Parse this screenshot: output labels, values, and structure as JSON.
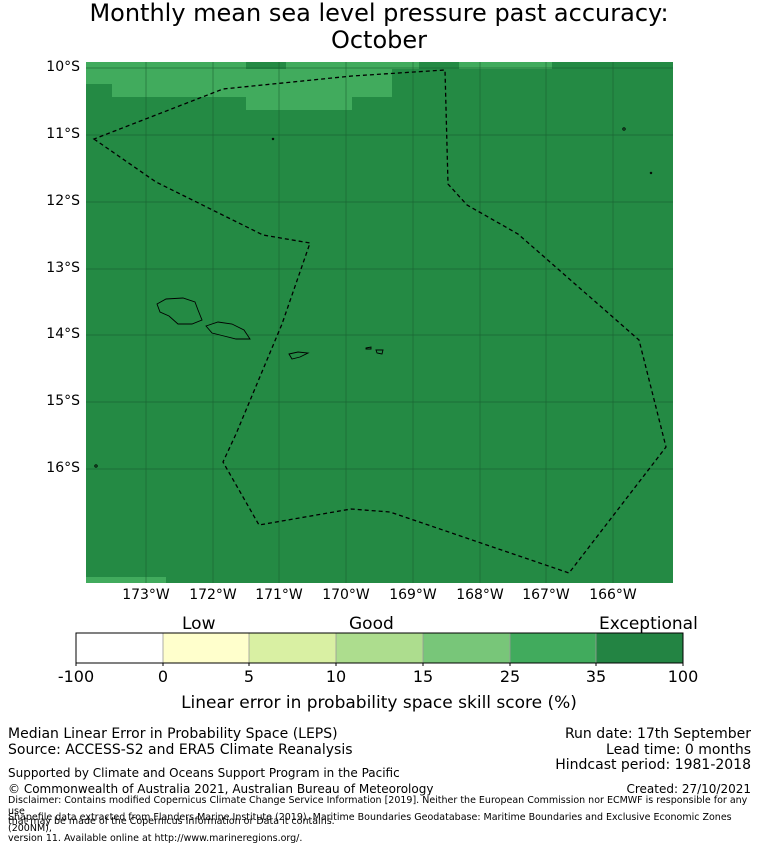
{
  "title_line1": "Monthly mean sea level pressure past accuracy:",
  "title_line2": "October",
  "map": {
    "latitude_labels": [
      "10°S",
      "11°S",
      "12°S",
      "13°S",
      "14°S",
      "15°S",
      "16°S"
    ],
    "longitude_labels": [
      "173°W",
      "172°W",
      "171°W",
      "170°W",
      "169°W",
      "168°W",
      "167°W",
      "166°W"
    ],
    "fill_color": "#248a44",
    "light_color": "#41ab5d"
  },
  "colorbar": {
    "categories": [
      "Low",
      "Good",
      "Exceptional"
    ],
    "ticks": [
      "-100",
      "0",
      "5",
      "10",
      "15",
      "25",
      "35",
      "100"
    ],
    "colors": [
      "#ffffff",
      "#ffffcc",
      "#d9f0a3",
      "#addd8e",
      "#78c679",
      "#41ab5d",
      "#238443"
    ],
    "title": "Linear error in probability space skill score (%)"
  },
  "footer": {
    "method": "Median Linear Error in Probability Space (LEPS)",
    "source": "Source: ACCESS-S2 and ERA5 Climate Reanalysis",
    "run_date": "Run date: 17th September",
    "lead_time": "Lead time: 0 months",
    "hindcast": "Hindcast period: 1981-2018",
    "supported": "Supported by Climate and Oceans Support Program in the Pacific",
    "copyright": "© Commonwealth of Australia 2021, Australian Bureau of Meteorology",
    "created": "Created: 27/10/2021",
    "disclaimer1": "Disclaimer: Contains modified Copernicus Climate Change Service Information [2019]. Neither the European Commission nor ECMWF is responsible for any use",
    "disclaimer2": "that may be made of the Copernicus Information or Data it contains.",
    "shapefile1": "Shapefile data extracted from Flanders Marine Institute (2019). Maritime Boundaries Geodatabase: Maritime Boundaries and Exclusive Economic Zones (200NM),",
    "shapefile2": "version 11. Available online at http://www.marineregions.org/."
  }
}
